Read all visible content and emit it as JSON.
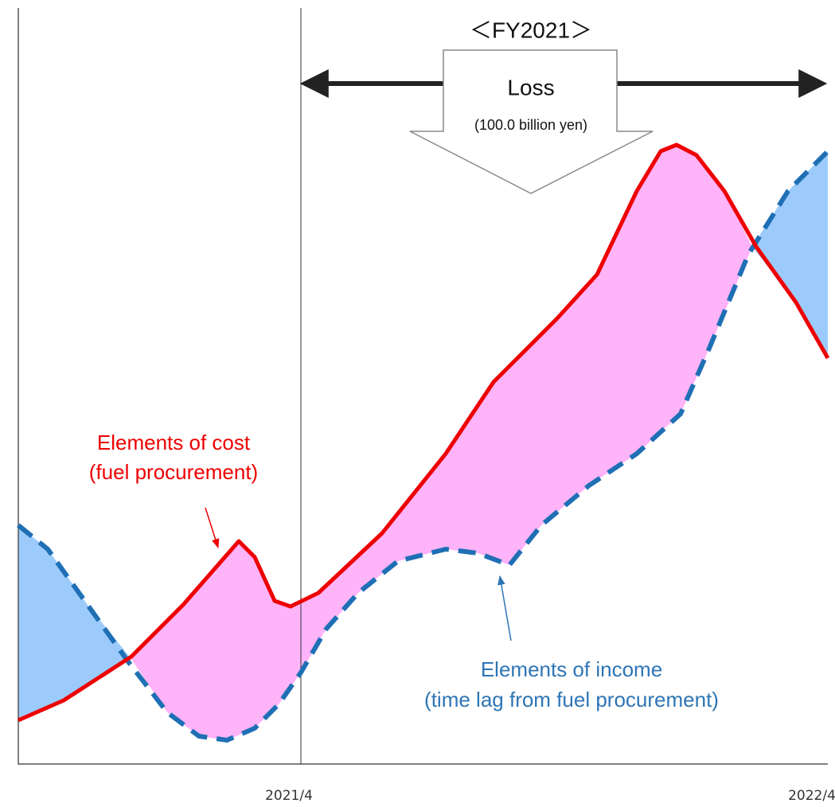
{
  "header": {
    "title": "＜FY2021＞"
  },
  "callout": {
    "label": "Loss",
    "amount": "(100.0 billion yen)"
  },
  "cost_label": {
    "line1": "Elements of cost",
    "line2": "(fuel procurement)"
  },
  "income_label": {
    "line1": "Elements of income",
    "line2": "(time lag from fuel procurement)"
  },
  "axis": {
    "labels": [
      "2021/4",
      "2022/4"
    ]
  }
}
